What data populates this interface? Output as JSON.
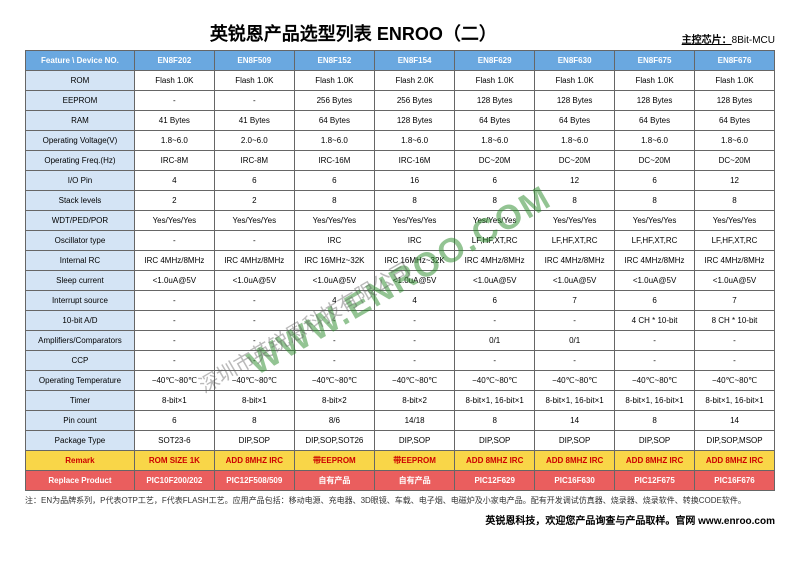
{
  "title": "英锐恩产品选型列表 ENROO（二）",
  "chip_label": "主控芯片：",
  "chip_value": "8Bit-MCU",
  "watermark_url": "WWW.ENROO.COM",
  "watermark_cn": "深圳市英锐恩科技有限公司",
  "header_row": [
    "Feature \\ Device NO.",
    "EN8F202",
    "EN8F509",
    "EN8F152",
    "EN8F154",
    "EN8F629",
    "EN8F630",
    "EN8F675",
    "EN8F676"
  ],
  "rows": [
    {
      "f": "ROM",
      "c": [
        "Flash 1.0K",
        "Flash 1.0K",
        "Flash 1.0K",
        "Flash 2.0K",
        "Flash 1.0K",
        "Flash 1.0K",
        "Flash 1.0K",
        "Flash 1.0K"
      ]
    },
    {
      "f": "EEPROM",
      "c": [
        "-",
        "-",
        "256 Bytes",
        "256 Bytes",
        "128 Bytes",
        "128 Bytes",
        "128 Bytes",
        "128 Bytes"
      ]
    },
    {
      "f": "RAM",
      "c": [
        "41 Bytes",
        "41 Bytes",
        "64 Bytes",
        "128 Bytes",
        "64 Bytes",
        "64 Bytes",
        "64 Bytes",
        "64 Bytes"
      ]
    },
    {
      "f": "Operating Voltage(V)",
      "c": [
        "1.8~6.0",
        "2.0~6.0",
        "1.8~6.0",
        "1.8~6.0",
        "1.8~6.0",
        "1.8~6.0",
        "1.8~6.0",
        "1.8~6.0"
      ]
    },
    {
      "f": "Operating Freq.(Hz)",
      "c": [
        "IRC-8M",
        "IRC-8M",
        "IRC-16M",
        "IRC-16M",
        "DC~20M",
        "DC~20M",
        "DC~20M",
        "DC~20M"
      ]
    },
    {
      "f": "I/O Pin",
      "c": [
        "4",
        "6",
        "6",
        "16",
        "6",
        "12",
        "6",
        "12"
      ]
    },
    {
      "f": "Stack levels",
      "c": [
        "2",
        "2",
        "8",
        "8",
        "8",
        "8",
        "8",
        "8"
      ]
    },
    {
      "f": "WDT/PED/POR",
      "c": [
        "Yes/Yes/Yes",
        "Yes/Yes/Yes",
        "Yes/Yes/Yes",
        "Yes/Yes/Yes",
        "Yes/Yes/Yes",
        "Yes/Yes/Yes",
        "Yes/Yes/Yes",
        "Yes/Yes/Yes"
      ]
    },
    {
      "f": "Oscillator type",
      "c": [
        "-",
        "-",
        "IRC",
        "IRC",
        "LF,HF,XT,RC",
        "LF,HF,XT,RC",
        "LF,HF,XT,RC",
        "LF,HF,XT,RC"
      ]
    },
    {
      "f": "Internal RC",
      "c": [
        "IRC 4MHz/8MHz",
        "IRC 4MHz/8MHz",
        "IRC 16MHz~32K",
        "IRC 16MHz~32K",
        "IRC 4MHz/8MHz",
        "IRC 4MHz/8MHz",
        "IRC 4MHz/8MHz",
        "IRC 4MHz/8MHz"
      ]
    },
    {
      "f": "Sleep current",
      "c": [
        "<1.0uA@5V",
        "<1.0uA@5V",
        "<1.0uA@5V",
        "<1.0uA@5V",
        "<1.0uA@5V",
        "<1.0uA@5V",
        "<1.0uA@5V",
        "<1.0uA@5V"
      ]
    },
    {
      "f": "Interrupt source",
      "c": [
        "-",
        "-",
        "4",
        "4",
        "6",
        "7",
        "6",
        "7"
      ]
    },
    {
      "f": "10-bit A/D",
      "c": [
        "-",
        "-",
        "-",
        "-",
        "-",
        "-",
        "4 CH * 10-bit",
        "8 CH * 10-bit"
      ]
    },
    {
      "f": "Amplifiers/Comparators",
      "c": [
        "-",
        "-",
        "-",
        "-",
        "0/1",
        "0/1",
        "-",
        "-"
      ]
    },
    {
      "f": "CCP",
      "c": [
        "-",
        "-",
        "-",
        "-",
        "-",
        "-",
        "-",
        "-"
      ]
    },
    {
      "f": "Operating Temperature",
      "c": [
        "−40℃~80℃",
        "−40℃~80℃",
        "−40℃~80℃",
        "−40℃~80℃",
        "−40℃~80℃",
        "−40℃~80℃",
        "−40℃~80℃",
        "−40℃~80℃"
      ]
    },
    {
      "f": "Timer",
      "c": [
        "8-bit×1",
        "8-bit×1",
        "8-bit×2",
        "8-bit×2",
        "8-bit×1, 16-bit×1",
        "8-bit×1, 16-bit×1",
        "8-bit×1, 16-bit×1",
        "8-bit×1, 16-bit×1"
      ]
    },
    {
      "f": "Pin count",
      "c": [
        "6",
        "8",
        "8/6",
        "14/18",
        "8",
        "14",
        "8",
        "14"
      ]
    },
    {
      "f": "Package Type",
      "c": [
        "SOT23-6",
        "DIP,SOP",
        "DIP,SOP,SOT26",
        "DIP,SOP",
        "DIP,SOP",
        "DIP,SOP",
        "DIP,SOP",
        "DIP,SOP,MSOP"
      ]
    }
  ],
  "remark": {
    "f": "Remark",
    "c": [
      "ROM SIZE 1K",
      "ADD 8MHZ IRC",
      "带EEPROM",
      "带EEPROM",
      "ADD 8MHZ IRC",
      "ADD 8MHZ IRC",
      "ADD 8MHZ IRC",
      "ADD 8MHZ IRC"
    ]
  },
  "replace": {
    "f": "Replace Product",
    "c": [
      "PIC10F200/202",
      "PIC12F508/509",
      "自有产品",
      "自有产品",
      "PIC12F629",
      "PIC16F630",
      "PIC12F675",
      "PIC16F676"
    ]
  },
  "footnote": "注：EN为品牌系列，P代表OTP工艺，F代表FLASH工艺。应用产品包括：移动电源、充电器、3D眼镜、车载、电子烟、电磁炉及小家电产品。配有开发调试仿真器、烧录器、烧录软件、转换CODE软件。",
  "contact": "英锐恩科技，欢迎您产品询查与产品取样。官网 www.enroo.com"
}
